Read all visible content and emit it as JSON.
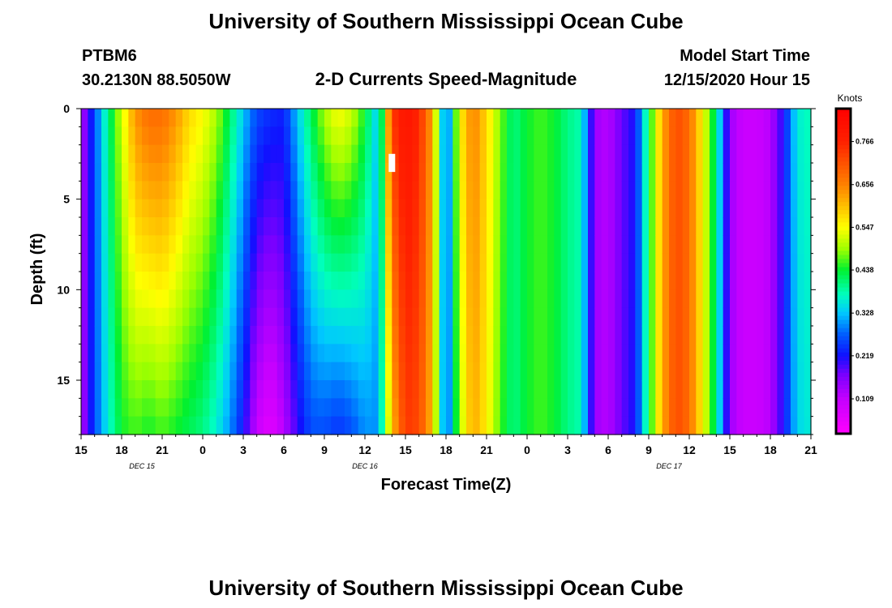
{
  "header": {
    "title_top": "University of Southern Mississippi Ocean Cube",
    "title_bottom": "University of Southern Mississippi Ocean Cube",
    "station_id": "PTBM6",
    "station_coords": "30.2130N 88.5050W",
    "model_start_label": "Model Start Time",
    "model_start_value": "12/15/2020 Hour 15"
  },
  "colors": {
    "background": "#ffffff",
    "text": "#000000",
    "gap_marker": "#ffffff"
  },
  "chart_data": {
    "type": "heatmap",
    "title": "2-D Currents Speed-Magnitude",
    "xlabel": "Forecast Time(Z)",
    "ylabel": "Depth (ft)",
    "units_label": "Knots",
    "x_range_hours": [
      0,
      54
    ],
    "y_range_ft": [
      0,
      18
    ],
    "x_ticks": [
      {
        "hour": 0,
        "label": "15"
      },
      {
        "hour": 3,
        "label": "18"
      },
      {
        "hour": 6,
        "label": "21"
      },
      {
        "hour": 9,
        "label": "0"
      },
      {
        "hour": 12,
        "label": "3"
      },
      {
        "hour": 15,
        "label": "6"
      },
      {
        "hour": 18,
        "label": "9"
      },
      {
        "hour": 21,
        "label": "12"
      },
      {
        "hour": 24,
        "label": "15"
      },
      {
        "hour": 27,
        "label": "18"
      },
      {
        "hour": 30,
        "label": "21"
      },
      {
        "hour": 33,
        "label": "0"
      },
      {
        "hour": 36,
        "label": "3"
      },
      {
        "hour": 39,
        "label": "6"
      },
      {
        "hour": 42,
        "label": "9"
      },
      {
        "hour": 45,
        "label": "12"
      },
      {
        "hour": 48,
        "label": "15"
      },
      {
        "hour": 51,
        "label": "18"
      },
      {
        "hour": 54,
        "label": "21"
      }
    ],
    "y_ticks": [
      {
        "depth": 0,
        "label": "0"
      },
      {
        "depth": 5,
        "label": "5"
      },
      {
        "depth": 10,
        "label": "10"
      },
      {
        "depth": 15,
        "label": "15"
      }
    ],
    "day_labels": [
      {
        "hour": 4.5,
        "label": "DEC 15"
      },
      {
        "hour": 21,
        "label": "DEC 16"
      },
      {
        "hour": 43.5,
        "label": "DEC 17"
      }
    ],
    "colorbar": {
      "range": [
        0.02,
        0.85
      ],
      "ticks": [
        0.109,
        0.219,
        0.328,
        0.438,
        0.547,
        0.656,
        0.766
      ],
      "labels": [
        "0.109",
        "0.219",
        "0.328",
        "0.438",
        "0.547",
        "0.656",
        "0.766"
      ],
      "stops": [
        {
          "v": 0.02,
          "color": "#ff00ff"
        },
        {
          "v": 0.109,
          "color": "#c400ff"
        },
        {
          "v": 0.17,
          "color": "#7a00ff"
        },
        {
          "v": 0.219,
          "color": "#1010ff"
        },
        {
          "v": 0.275,
          "color": "#0060ff"
        },
        {
          "v": 0.328,
          "color": "#00c8ff"
        },
        {
          "v": 0.375,
          "color": "#00ffbe"
        },
        {
          "v": 0.438,
          "color": "#00f030"
        },
        {
          "v": 0.49,
          "color": "#9cff00"
        },
        {
          "v": 0.547,
          "color": "#ffff00"
        },
        {
          "v": 0.6,
          "color": "#ffc000"
        },
        {
          "v": 0.656,
          "color": "#ff8000"
        },
        {
          "v": 0.72,
          "color": "#ff4a00"
        },
        {
          "v": 0.766,
          "color": "#ff2000"
        },
        {
          "v": 0.85,
          "color": "#ff0000"
        }
      ]
    },
    "speed_profile": {
      "description": "speed (knots) per forecast hour at surface (top) and at max depth (bottom); interpolated with depth",
      "hours": [
        0,
        1,
        2,
        3,
        4,
        5,
        6,
        7,
        8,
        9,
        10,
        11,
        12,
        13,
        14,
        15,
        16,
        17,
        18,
        19,
        20,
        21,
        22,
        23,
        24,
        25,
        26,
        27,
        28,
        29,
        30,
        31,
        32,
        33,
        34,
        35,
        36,
        37,
        38,
        39,
        40,
        41,
        42,
        43,
        44,
        45,
        46,
        47,
        48,
        49,
        50,
        51,
        52,
        53,
        54
      ],
      "surface": [
        0.12,
        0.26,
        0.4,
        0.52,
        0.64,
        0.68,
        0.68,
        0.64,
        0.58,
        0.55,
        0.5,
        0.42,
        0.33,
        0.26,
        0.24,
        0.23,
        0.33,
        0.42,
        0.5,
        0.55,
        0.52,
        0.44,
        0.32,
        0.74,
        0.8,
        0.76,
        0.62,
        0.24,
        0.55,
        0.66,
        0.58,
        0.48,
        0.4,
        0.44,
        0.46,
        0.44,
        0.4,
        0.38,
        0.14,
        0.12,
        0.18,
        0.22,
        0.42,
        0.62,
        0.72,
        0.68,
        0.55,
        0.4,
        0.14,
        0.1,
        0.1,
        0.12,
        0.22,
        0.36,
        0.38
      ],
      "bottom": [
        0.12,
        0.26,
        0.36,
        0.44,
        0.46,
        0.44,
        0.46,
        0.44,
        0.42,
        0.4,
        0.36,
        0.3,
        0.22,
        0.1,
        0.06,
        0.12,
        0.2,
        0.26,
        0.26,
        0.24,
        0.26,
        0.3,
        0.3,
        0.6,
        0.74,
        0.72,
        0.6,
        0.24,
        0.5,
        0.62,
        0.56,
        0.46,
        0.4,
        0.44,
        0.46,
        0.44,
        0.4,
        0.38,
        0.14,
        0.12,
        0.18,
        0.22,
        0.42,
        0.62,
        0.72,
        0.68,
        0.55,
        0.4,
        0.14,
        0.1,
        0.1,
        0.12,
        0.22,
        0.34,
        0.36
      ]
    },
    "missing_cell": {
      "hour": 23,
      "depth_start": 2.5,
      "depth_end": 3.5
    }
  }
}
